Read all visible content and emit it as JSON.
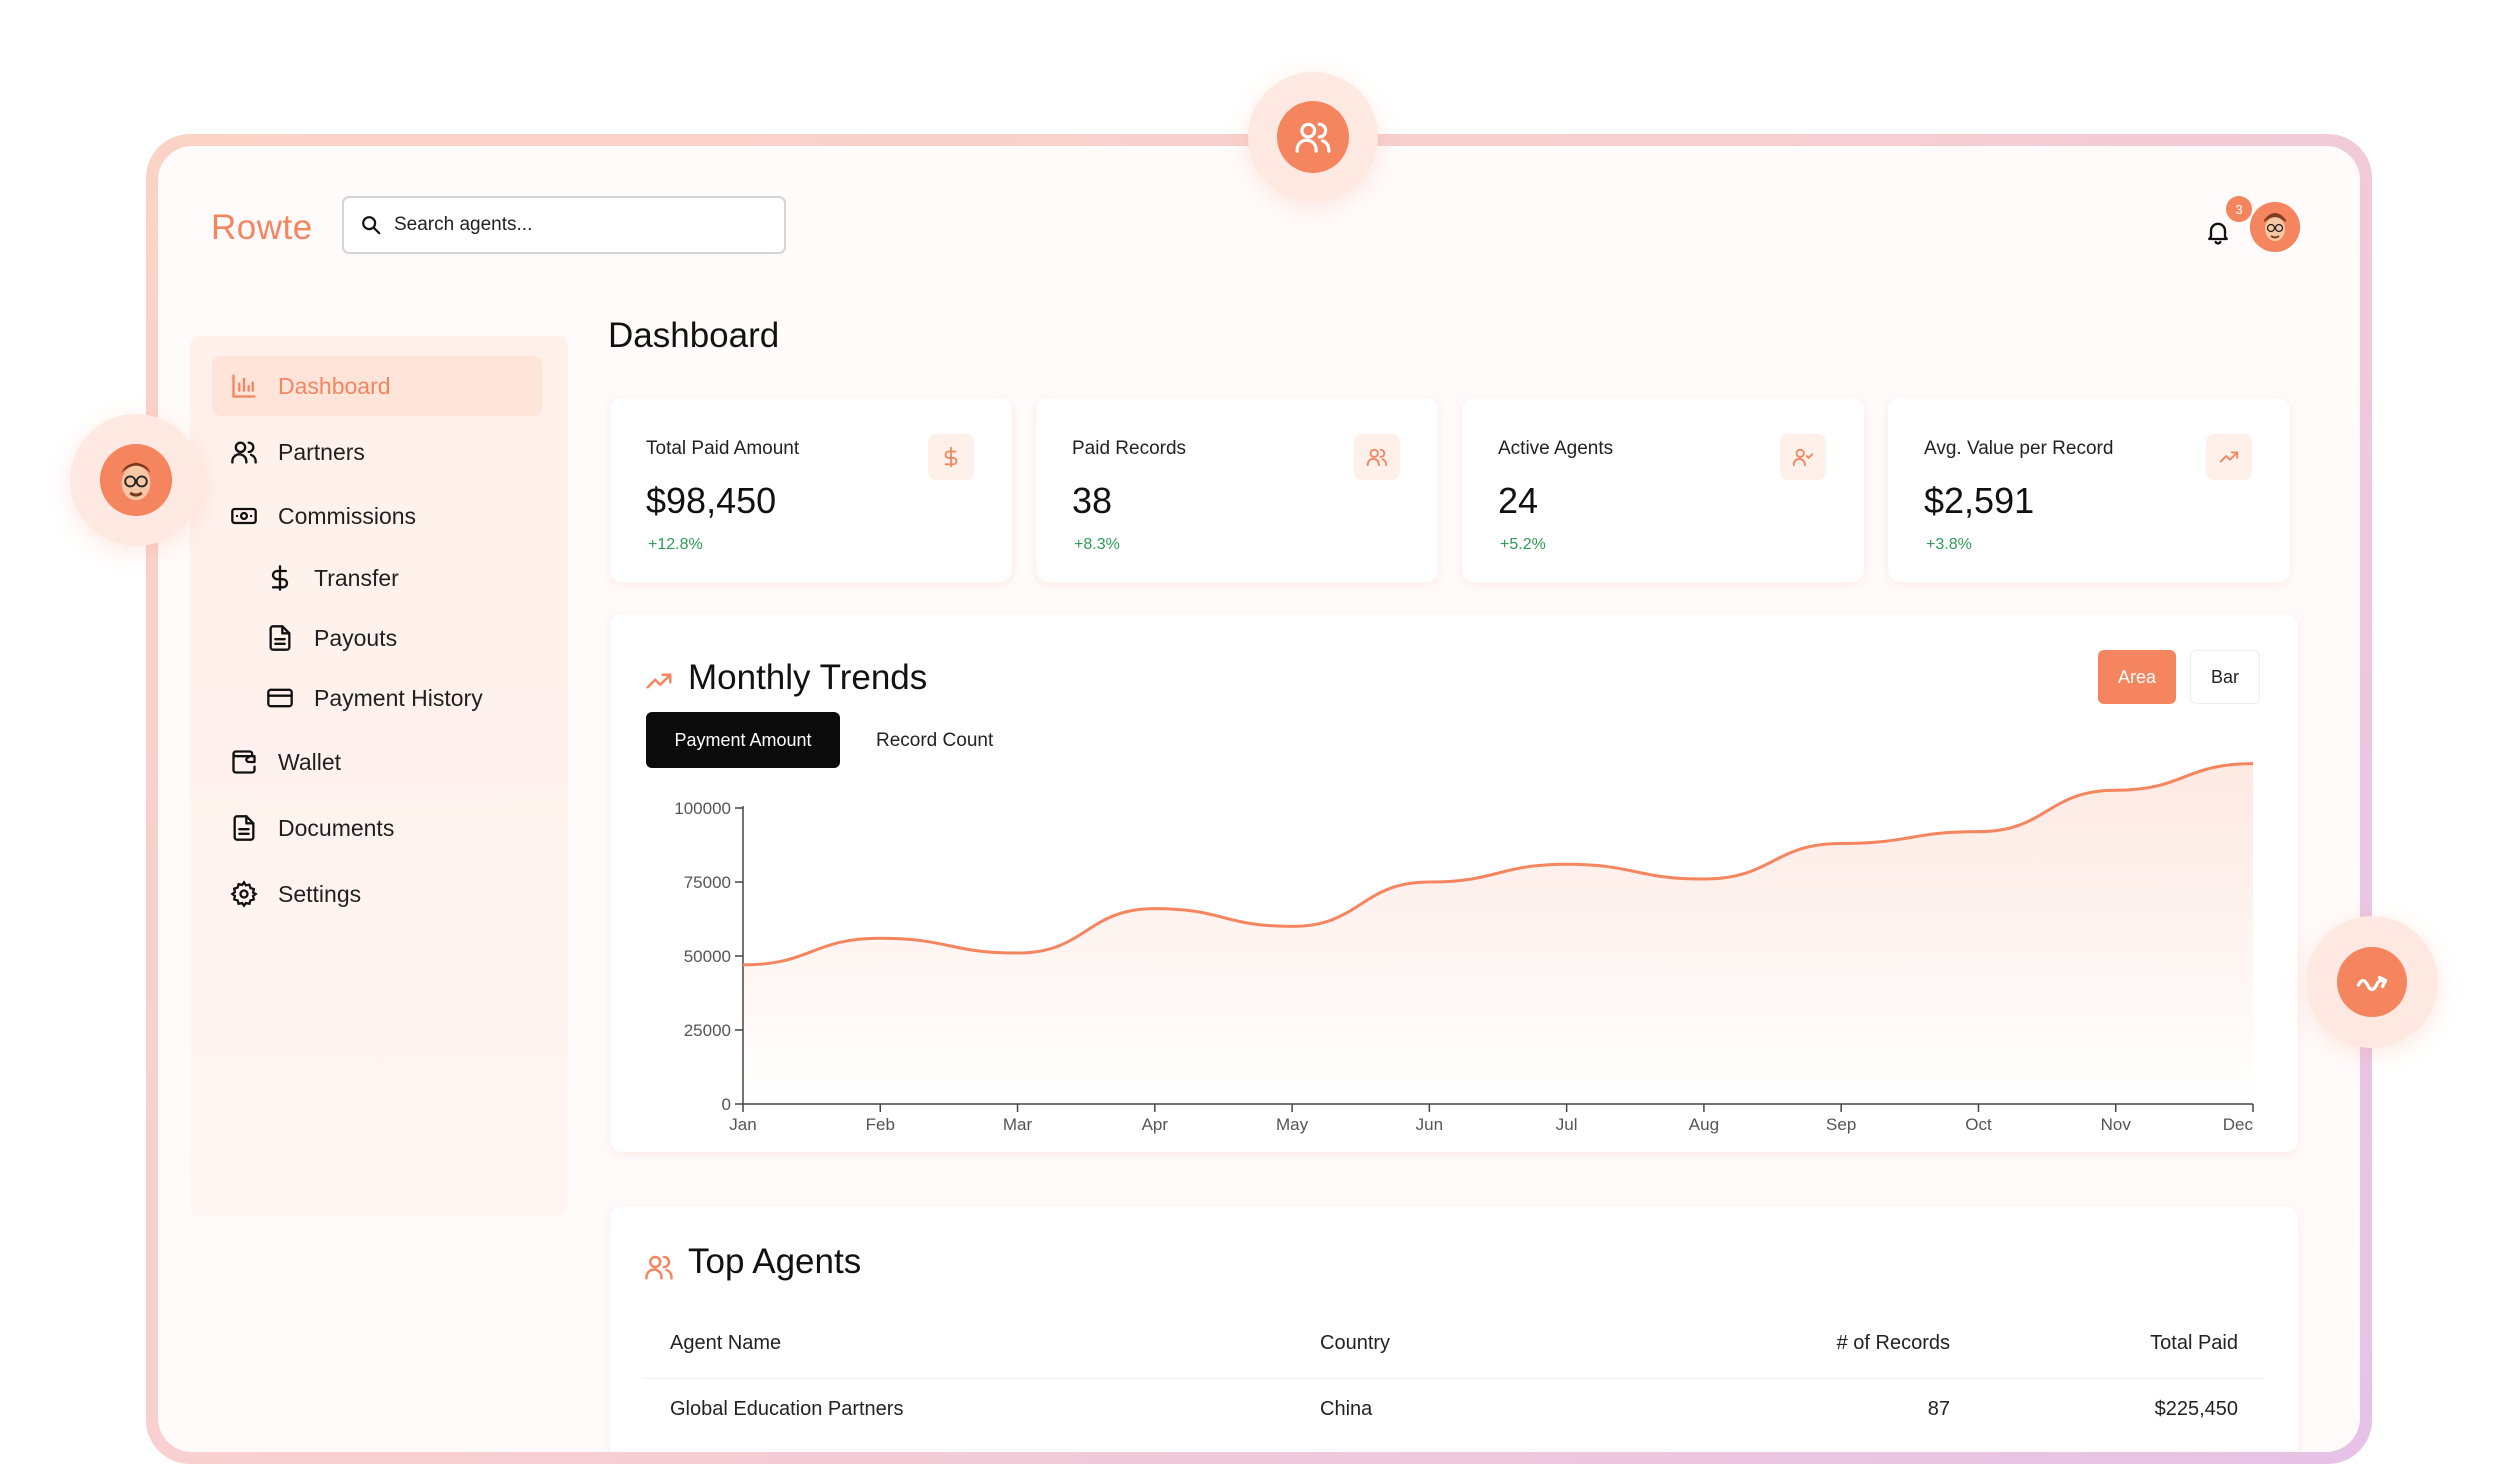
{
  "app": {
    "brand": "Rowte"
  },
  "search": {
    "placeholder": "Search agents..."
  },
  "notifications": {
    "count": "3"
  },
  "colors": {
    "accent": "#f4855f",
    "positive": "#2e9b56"
  },
  "sidebar": {
    "items": [
      {
        "label": "Dashboard",
        "icon": "bar-chart-icon",
        "active": true
      },
      {
        "label": "Partners",
        "icon": "users-icon"
      },
      {
        "label": "Commissions",
        "icon": "banknote-icon"
      },
      {
        "label": "Transfer",
        "icon": "dollar-icon",
        "sub": true
      },
      {
        "label": "Payouts",
        "icon": "document-icon",
        "sub": true
      },
      {
        "label": "Payment History",
        "icon": "credit-card-icon",
        "sub": true
      },
      {
        "label": "Wallet",
        "icon": "wallet-icon"
      },
      {
        "label": "Documents",
        "icon": "document-icon"
      },
      {
        "label": "Settings",
        "icon": "gear-icon"
      }
    ]
  },
  "page": {
    "title": "Dashboard"
  },
  "stats": [
    {
      "label": "Total Paid Amount",
      "value": "$98,450",
      "delta": "+12.8%",
      "icon": "dollar-icon"
    },
    {
      "label": "Paid Records",
      "value": "38",
      "delta": "+8.3%",
      "icon": "users-icon"
    },
    {
      "label": "Active Agents",
      "value": "24",
      "delta": "+5.2%",
      "icon": "user-check-icon"
    },
    {
      "label": "Avg. Value per Record",
      "value": "$2,591",
      "delta": "+3.8%",
      "icon": "trending-up-icon"
    }
  ],
  "trends": {
    "title": "Monthly Trends",
    "chart_toggle": {
      "area": "Area",
      "bar": "Bar",
      "selected": "Area"
    },
    "tabs": {
      "payment": "Payment Amount",
      "records": "Record Count",
      "selected": "Payment Amount"
    }
  },
  "chart_data": {
    "type": "area",
    "categories": [
      "Jan",
      "Feb",
      "Mar",
      "Apr",
      "May",
      "Jun",
      "Jul",
      "Aug",
      "Sep",
      "Oct",
      "Nov",
      "Dec"
    ],
    "series": [
      {
        "values": [
          47000,
          56000,
          51000,
          66000,
          60000,
          75000,
          81000,
          76000,
          88000,
          92000,
          106000,
          115000
        ]
      }
    ],
    "yticks": [
      0,
      25000,
      50000,
      75000,
      100000
    ],
    "ylim": [
      0,
      125000
    ],
    "color": "#f4855f"
  },
  "agents": {
    "title": "Top Agents",
    "columns": [
      "Agent Name",
      "Country",
      "# of Records",
      "Total Paid"
    ],
    "rows": [
      [
        "Global Education Partners",
        "China",
        "87",
        "$225,450"
      ]
    ]
  }
}
